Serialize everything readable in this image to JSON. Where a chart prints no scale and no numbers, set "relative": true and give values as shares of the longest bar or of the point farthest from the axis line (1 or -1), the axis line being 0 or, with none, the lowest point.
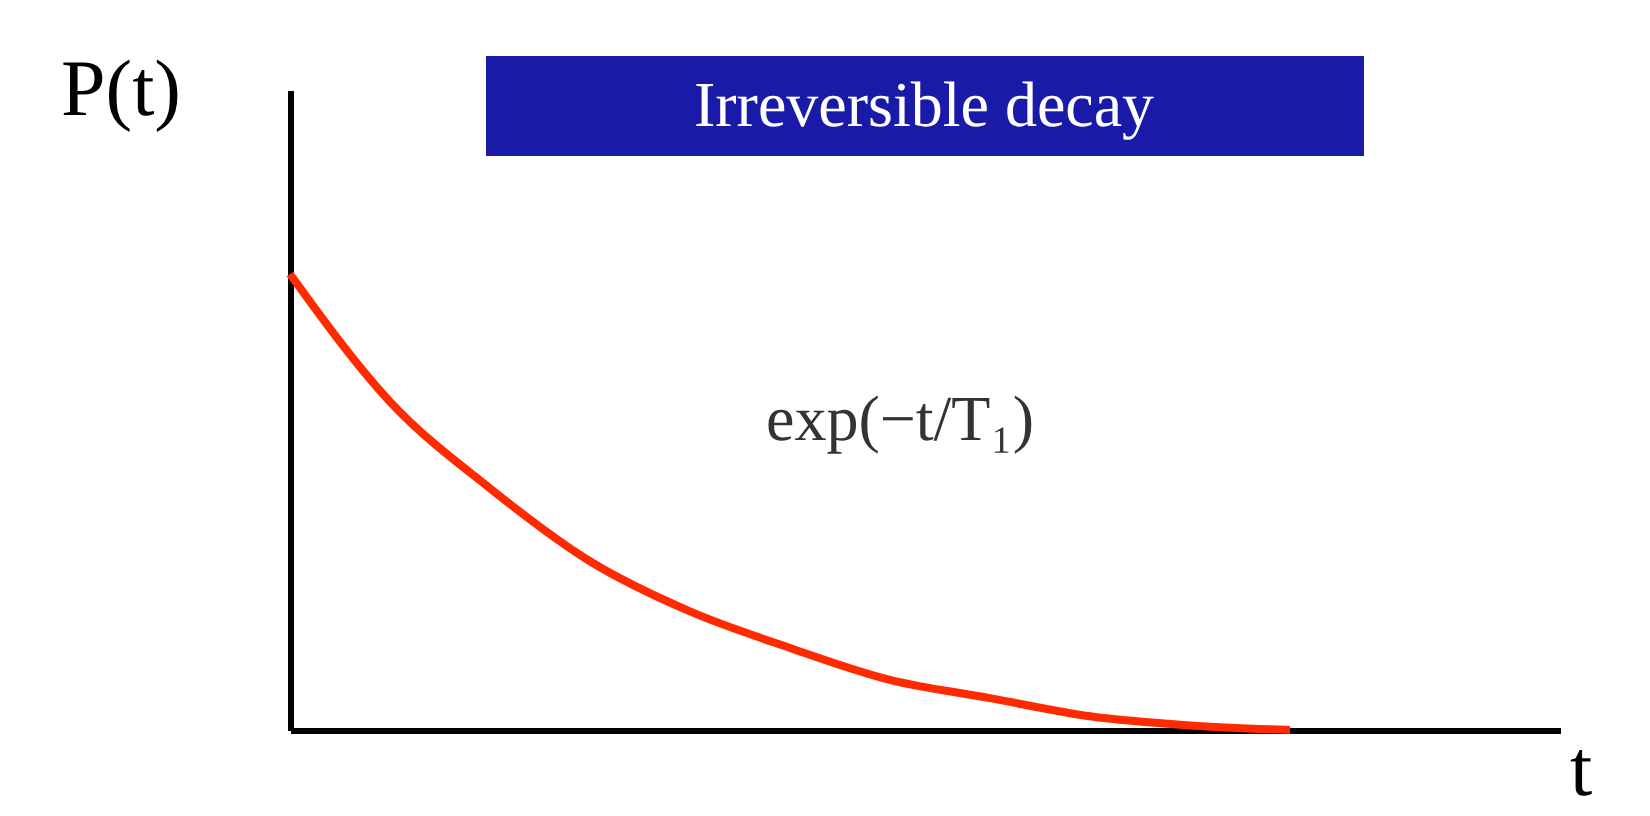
{
  "chart_data": {
    "type": "line",
    "title": "Irreversible decay",
    "xlabel": "t",
    "ylabel": "P(t)",
    "relative": true,
    "annotations": [
      "exp(−t/T₁)"
    ],
    "categories": [
      null,
      null,
      null,
      null,
      null,
      null,
      null,
      null,
      null,
      null,
      null,
      null,
      null
    ],
    "series": [
      {
        "color": "#ff2a00",
        "values": [
          1.0,
          0.72,
          0.53,
          0.37,
          0.26,
          0.18,
          0.11,
          0.07,
          0.03,
          0.01,
          0.0,
          null,
          null
        ]
      }
    ],
    "grid": false,
    "marker": "none",
    "line_style": "solid"
  }
}
